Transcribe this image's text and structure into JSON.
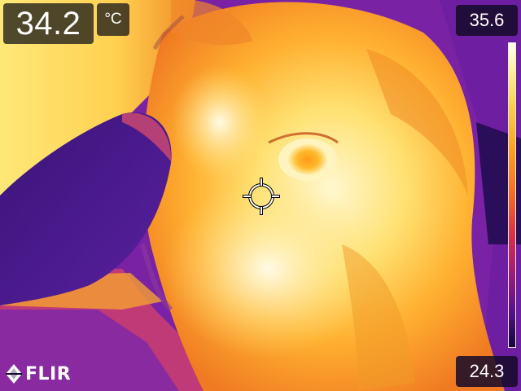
{
  "measurement": {
    "spot_temperature": "34.2",
    "unit": "°C"
  },
  "scale": {
    "max": "35.6",
    "min": "24.3",
    "palette": "iron",
    "colors": [
      "#fffff2",
      "#ffd04a",
      "#f56a22",
      "#a01a78",
      "#14063a"
    ]
  },
  "crosshair": {
    "icon": "crosshair-icon"
  },
  "brand": {
    "name": "FLIR"
  }
}
